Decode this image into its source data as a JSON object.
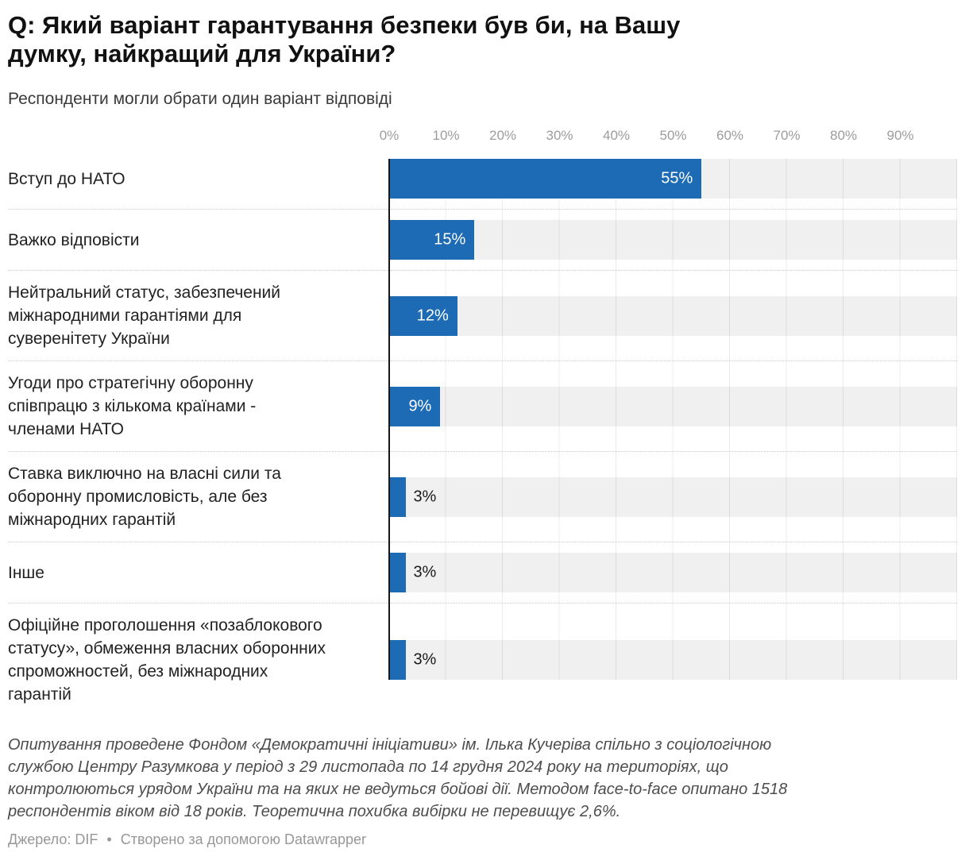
{
  "header": {
    "title": "Q: Який варіант гарантування безпеки був би, на Вашу\nдумку, найкращий для України?",
    "subtitle": "Респонденти могли обрати один варіант відповіді"
  },
  "chart_data": {
    "type": "bar",
    "orientation": "horizontal",
    "title": "Q: Який варіант гарантування безпеки був би, на Вашу думку, найкращий для України?",
    "subtitle": "Респонденти могли обрати один варіант відповіді",
    "xlim": [
      0,
      100
    ],
    "grid": true,
    "axis_ticks": [
      "0%",
      "10%",
      "20%",
      "30%",
      "40%",
      "50%",
      "60%",
      "70%",
      "80%",
      "90%"
    ],
    "categories": [
      "Вступ до НАТО",
      "Важко відповісти",
      "Нейтральний статус, забезпечений міжнародними гарантіями для суверенітету України",
      "Угоди про стратегічну оборонну співпрацю з кількома країнами - членами НАТО",
      "Ставка виключно на власні сили та оборонну промисловість, але без міжнародних гарантій",
      "Інше",
      "Офіційне проголошення «позаблокового статусу», обмеження власних оборонних спроможностей, без міжнародних гарантій"
    ],
    "values": [
      55,
      15,
      12,
      9,
      3,
      3,
      3
    ],
    "rows": [
      {
        "label": "Вступ до НАТО",
        "value": 55,
        "display": "55%"
      },
      {
        "label": "Важко відповісти",
        "value": 15,
        "display": "15%"
      },
      {
        "label": "Нейтральний статус, забезпечений\nміжнародними гарантіями для\nсуверенітету України",
        "value": 12,
        "display": "12%"
      },
      {
        "label": "Угоди про стратегічну оборонну\nспівпрацю з кількома країнами -\nчленами НАТО",
        "value": 9,
        "display": "9%"
      },
      {
        "label": "Ставка виключно на власні сили та\nоборонну промисловість, але без\nміжнародних гарантій",
        "value": 3,
        "display": "3%"
      },
      {
        "label": "Інше",
        "value": 3,
        "display": "3%"
      },
      {
        "label": "Офіційне проголошення «позаблокового\nстатусу», обмеження власних оборонних\nспроможностей, без міжнародних\nгарантій",
        "value": 3,
        "display": "3%"
      }
    ],
    "colors": {
      "bar": "#1d6bb4",
      "track": "#f0f0f0",
      "gridline": "#dcdcdc",
      "axis_line": "#161616",
      "value_inside": "#ffffff",
      "value_outside": "#1a1a1a"
    },
    "legend_position": "none"
  },
  "footer": {
    "notes": "Опитування проведене Фондом «Демократичні ініціативи» ім. Ілька Кучеріва спільно з соціологічною\nслужбою Центру Разумкова у період з 29 листопада по 14 грудня 2024 року на територіях, що\nконтролюються урядом України та на яких не ведуться бойові дії. Методом face-to-face опитано 1518\nреспондентів віком від 18 років. Теоретична похибка вибірки не перевищує 2,6%.",
    "source_label": "Джерело:",
    "source": "DIF",
    "separator": "•",
    "attribution": "Створено за допомогою Datawrapper"
  }
}
